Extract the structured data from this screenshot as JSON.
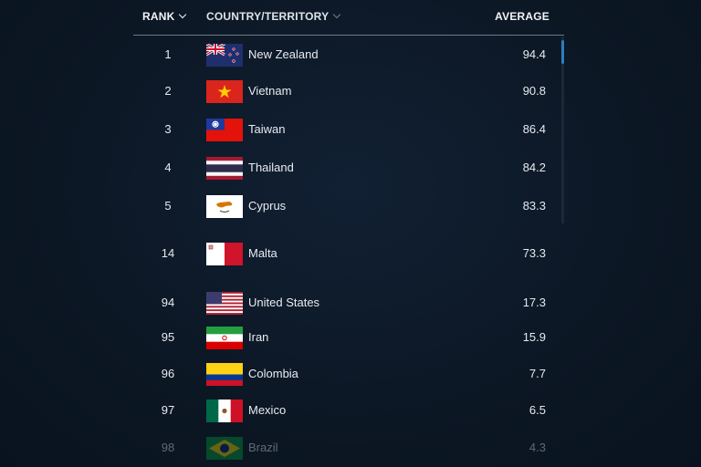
{
  "header": {
    "rank_label": "RANK",
    "country_label": "COUNTRY/TERRITORY",
    "average_label": "AVERAGE"
  },
  "rows": [
    {
      "rank": "1",
      "country": "New Zealand",
      "average": "94.4",
      "flag": "new-zealand-flag-icon"
    },
    {
      "rank": "2",
      "country": "Vietnam",
      "average": "90.8",
      "flag": "vietnam-flag-icon"
    },
    {
      "rank": "3",
      "country": "Taiwan",
      "average": "86.4",
      "flag": "taiwan-flag-icon"
    },
    {
      "rank": "4",
      "country": "Thailand",
      "average": "84.2",
      "flag": "thailand-flag-icon"
    },
    {
      "rank": "5",
      "country": "Cyprus",
      "average": "83.3",
      "flag": "cyprus-flag-icon"
    },
    {
      "rank": "14",
      "country": "Malta",
      "average": "73.3",
      "flag": "malta-flag-icon"
    },
    {
      "rank": "94",
      "country": "United States",
      "average": "17.3",
      "flag": "united-states-flag-icon"
    },
    {
      "rank": "95",
      "country": "Iran",
      "average": "15.9",
      "flag": "iran-flag-icon"
    },
    {
      "rank": "96",
      "country": "Colombia",
      "average": "7.7",
      "flag": "colombia-flag-icon"
    },
    {
      "rank": "97",
      "country": "Mexico",
      "average": "6.5",
      "flag": "mexico-flag-icon"
    },
    {
      "rank": "98",
      "country": "Brazil",
      "average": "4.3",
      "flag": "brazil-flag-icon"
    }
  ],
  "colors": {
    "background": "#0d1826",
    "text": "#e8ecf2",
    "scrollbar_thumb": "#2d7fb8",
    "divider": "#6d7987"
  }
}
